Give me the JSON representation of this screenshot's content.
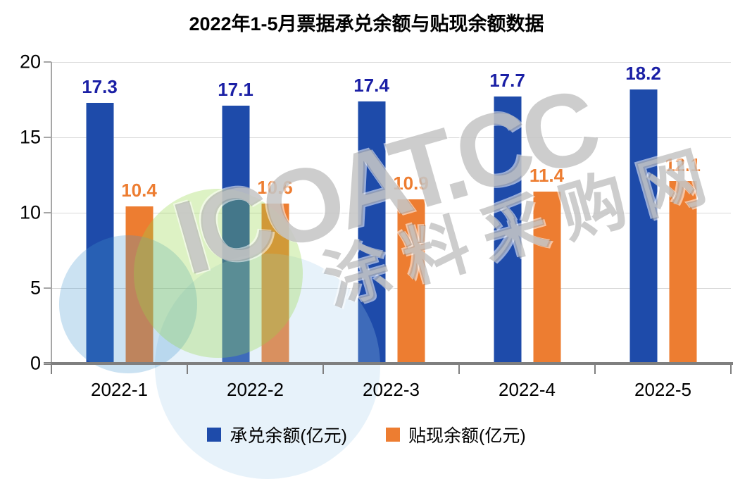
{
  "title": "2022年1-5月票据承兑余额与贴现余额数据",
  "chart_data": {
    "type": "bar",
    "title": "2022年1-5月票据承兑余额与贴现余额数据",
    "categories": [
      "2022-1",
      "2022-2",
      "2022-3",
      "2022-4",
      "2022-5"
    ],
    "series": [
      {
        "name": "承兑余额(亿元)",
        "values": [
          17.3,
          17.1,
          17.4,
          17.7,
          18.2
        ],
        "color": "#1E4BAA",
        "label_color": "#1A1FA5"
      },
      {
        "name": "贴现余额(亿元)",
        "values": [
          10.4,
          10.6,
          10.9,
          11.4,
          12.1
        ],
        "color": "#ED7D31",
        "label_color": "#ED7D31"
      }
    ],
    "xlabel": "",
    "ylabel": "",
    "ylim": [
      0,
      20
    ],
    "yticks": [
      0,
      5,
      10,
      15,
      20
    ],
    "grid": true,
    "gridline_color": "#d9d9d9",
    "legend_position": "bottom",
    "data_labels": true
  },
  "watermark": {
    "line1": "ICOAT.CC",
    "line2": "涂料采购网"
  }
}
